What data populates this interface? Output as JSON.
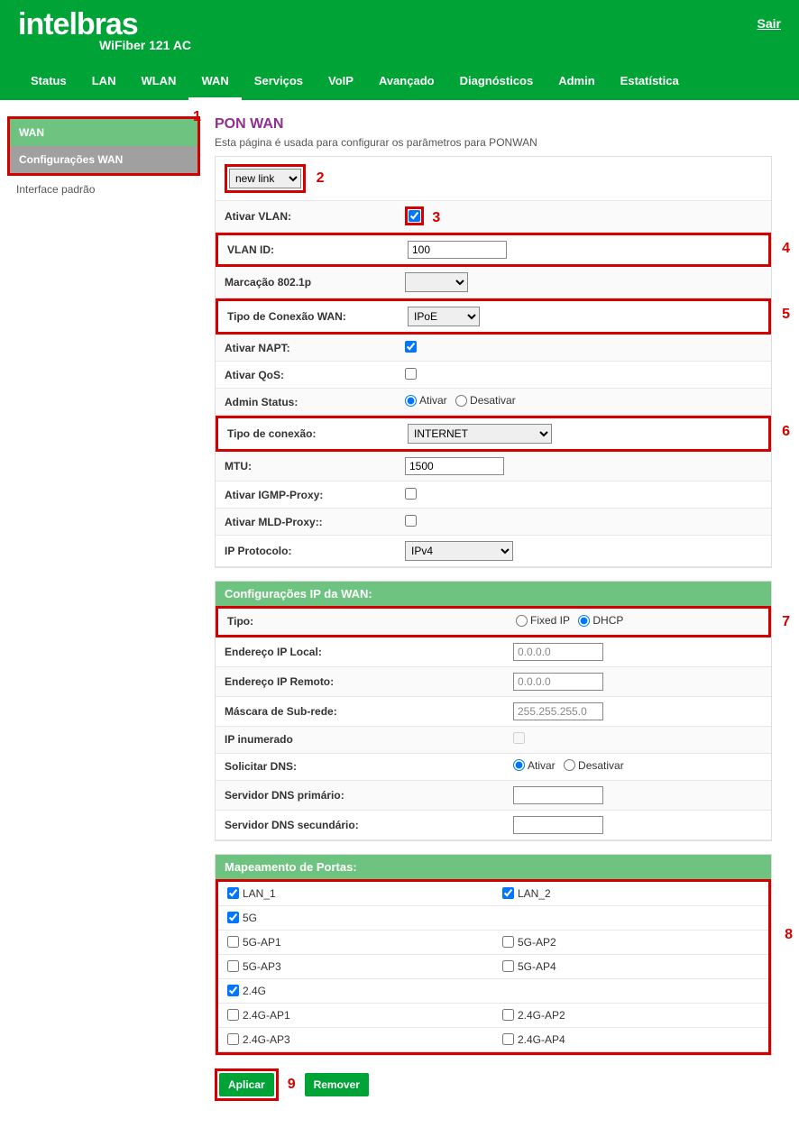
{
  "header": {
    "brand": "intelbras",
    "model": "WiFiber 121 AC",
    "logout": "Sair"
  },
  "nav": {
    "items": [
      "Status",
      "LAN",
      "WLAN",
      "WAN",
      "Serviços",
      "VoIP",
      "Avançado",
      "Diagnósticos",
      "Admin",
      "Estatística"
    ],
    "active": "WAN"
  },
  "sidebar": {
    "items": [
      "WAN",
      "Configurações WAN",
      "Interface padrão"
    ]
  },
  "annotations": {
    "a1": "1",
    "a2": "2",
    "a3": "3",
    "a4": "4",
    "a5": "5",
    "a6": "6",
    "a7": "7",
    "a8": "8",
    "a9": "9"
  },
  "page": {
    "title": "PON WAN",
    "desc": "Esta página é usada para configurar os parâmetros para PONWAN",
    "link_select": "new link",
    "rows": {
      "ativar_vlan": "Ativar VLAN:",
      "vlan_id_label": "VLAN ID:",
      "vlan_id_value": "100",
      "marcacao": "Marcação 802.1p",
      "tipo_wan_label": "Tipo de Conexão WAN:",
      "tipo_wan_value": "IPoE",
      "ativar_napt": "Ativar NAPT:",
      "ativar_qos": "Ativar QoS:",
      "admin_status": "Admin Status:",
      "admin_ativar": "Ativar",
      "admin_desativar": "Desativar",
      "tipo_conexao_label": "Tipo de conexão:",
      "tipo_conexao_value": "INTERNET",
      "mtu_label": "MTU:",
      "mtu_value": "1500",
      "igmp": "Ativar IGMP-Proxy:",
      "mld": "Ativar MLD-Proxy::",
      "ipproto_label": "IP Protocolo:",
      "ipproto_value": "IPv4"
    },
    "ipwan": {
      "header": "Configurações IP da WAN:",
      "tipo": "Tipo:",
      "fixed": "Fixed IP",
      "dhcp": "DHCP",
      "local_label": "Endereço IP Local:",
      "local_value": "0.0.0.0",
      "remoto_label": "Endereço IP Remoto:",
      "remoto_value": "0.0.0.0",
      "mask_label": "Máscara de Sub-rede:",
      "mask_value": "255.255.255.0",
      "ipinum": "IP inumerado",
      "soldns": "Solicitar DNS:",
      "dns_ativar": "Ativar",
      "dns_desativar": "Desativar",
      "dns1": "Servidor DNS primário:",
      "dns2": "Servidor DNS secundário:"
    },
    "portmap": {
      "header": "Mapeamento de Portas:",
      "items": [
        {
          "label": "LAN_1",
          "checked": true
        },
        {
          "label": "LAN_2",
          "checked": true
        },
        {
          "label": "5G",
          "checked": true
        },
        {
          "label": "",
          "checked": null
        },
        {
          "label": "5G-AP1",
          "checked": false
        },
        {
          "label": "5G-AP2",
          "checked": false
        },
        {
          "label": "5G-AP3",
          "checked": false
        },
        {
          "label": "5G-AP4",
          "checked": false
        },
        {
          "label": "2.4G",
          "checked": true
        },
        {
          "label": "",
          "checked": null
        },
        {
          "label": "2.4G-AP1",
          "checked": false
        },
        {
          "label": "2.4G-AP2",
          "checked": false
        },
        {
          "label": "2.4G-AP3",
          "checked": false
        },
        {
          "label": "2.4G-AP4",
          "checked": false
        }
      ]
    },
    "buttons": {
      "apply": "Aplicar",
      "remove": "Remover"
    }
  },
  "colors": {
    "brand_green": "#00a335",
    "annotation_red": "#d40000",
    "title_purple": "#912f91",
    "section_green": "#6fc381"
  }
}
